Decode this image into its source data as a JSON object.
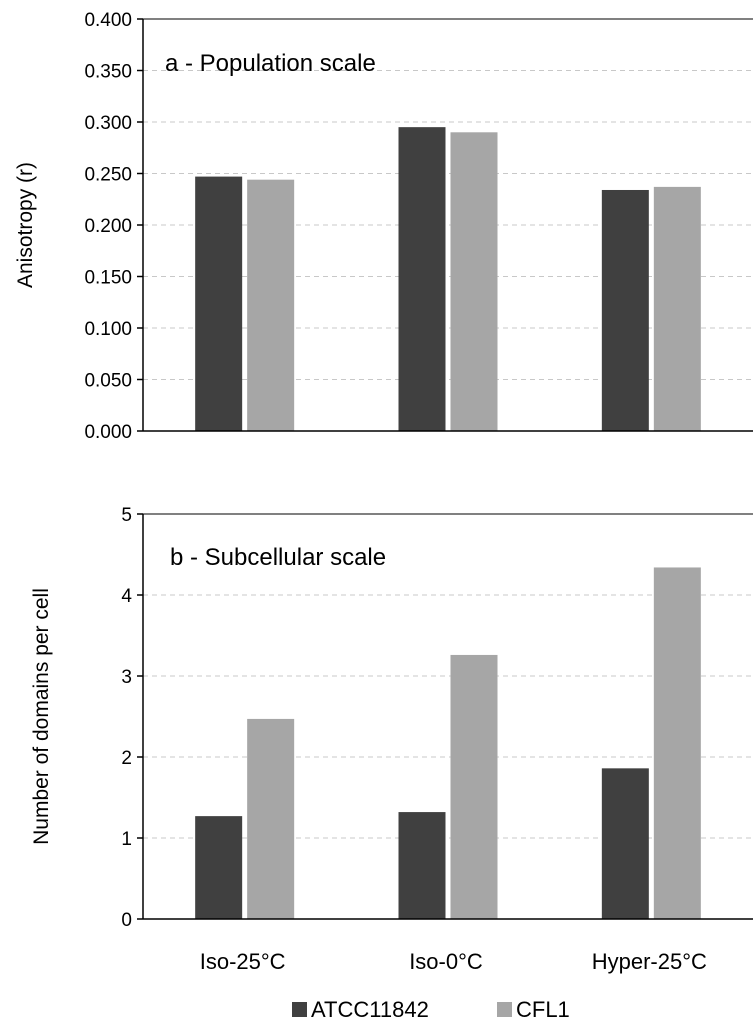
{
  "colors": {
    "ATCC11842": "#404040",
    "CFL1": "#a6a6a6",
    "grid": "#c8c8c8",
    "axis": "#000000"
  },
  "legend": [
    {
      "name": "ATCC11842",
      "color": "#404040"
    },
    {
      "name": "CFL1",
      "color": "#a6a6a6"
    }
  ],
  "chart_data": [
    {
      "type": "bar",
      "title": "a - Population scale",
      "ylabel": "Anisotropy (r)",
      "xlabel": "",
      "ylim": [
        0,
        0.4
      ],
      "yticks": [
        0,
        0.05,
        0.1,
        0.15,
        0.2,
        0.25,
        0.3,
        0.35,
        0.4
      ],
      "ytick_labels": [
        "0.000",
        "0.050",
        "0.100",
        "0.150",
        "0.200",
        "0.250",
        "0.300",
        "0.350",
        "0.400"
      ],
      "grid": true,
      "categories": [
        "Iso-25°C",
        "Iso-0°C",
        "Hyper-25°C"
      ],
      "series": [
        {
          "name": "ATCC11842",
          "values": [
            0.247,
            0.295,
            0.234
          ]
        },
        {
          "name": "CFL1",
          "values": [
            0.244,
            0.29,
            0.237
          ]
        }
      ]
    },
    {
      "type": "bar",
      "title": "b - Subcellular scale",
      "ylabel": "Number of domains per cell",
      "xlabel": "",
      "ylim": [
        0,
        5
      ],
      "yticks": [
        0,
        1,
        2,
        3,
        4,
        5
      ],
      "ytick_labels": [
        "0",
        "1",
        "2",
        "3",
        "4",
        "5"
      ],
      "grid": true,
      "legend_position": "bottom",
      "categories": [
        "Iso-25°C",
        "Iso-0°C",
        "Hyper-25°C"
      ],
      "series": [
        {
          "name": "ATCC11842",
          "values": [
            1.27,
            1.32,
            1.86
          ]
        },
        {
          "name": "CFL1",
          "values": [
            2.47,
            3.26,
            4.34
          ]
        }
      ]
    }
  ]
}
